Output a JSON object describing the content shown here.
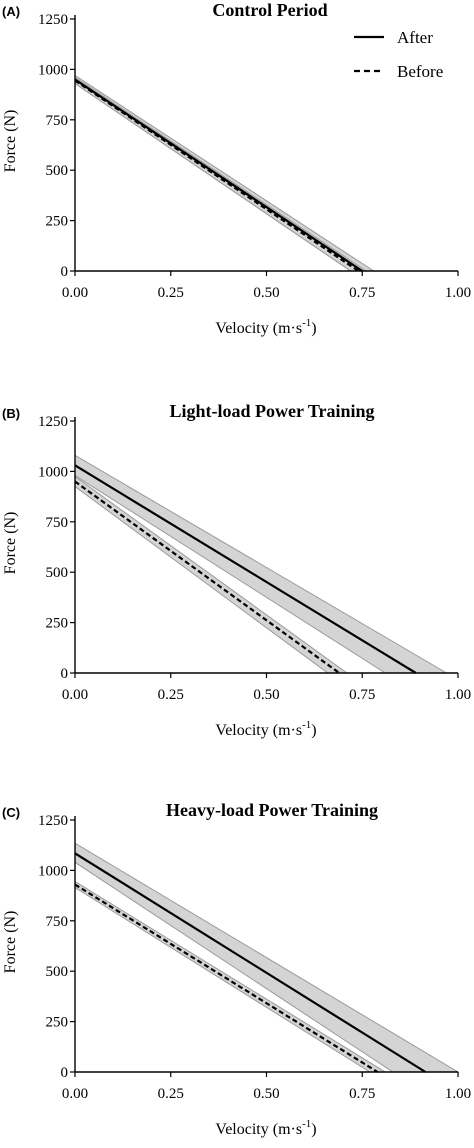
{
  "chart_data": [
    {
      "type": "line",
      "panel": "(A)",
      "title": "Control Period",
      "xlabel": "Velocity (m·s",
      "xlabel_sup": "-1",
      "xlabel_close": ")",
      "ylabel": "Force (N)",
      "xlim": [
        0,
        1
      ],
      "ylim": [
        0,
        1250
      ],
      "xticks": [
        0,
        0.25,
        0.5,
        0.75,
        1
      ],
      "xtick_labels": [
        "0.00",
        "0.25",
        "0.50",
        "0.75",
        "1.00"
      ],
      "yticks": [
        0,
        250,
        500,
        750,
        1000,
        1250
      ],
      "ytick_labels": [
        "0",
        "250",
        "500",
        "750",
        "1000",
        "1250"
      ],
      "legend": {
        "position": "top-right",
        "entries": [
          {
            "label": "After",
            "style": "solid"
          },
          {
            "label": "Before",
            "style": "dashed"
          }
        ]
      },
      "series": [
        {
          "name": "After",
          "style": "solid",
          "x": [
            0,
            0.75
          ],
          "y": [
            950,
            0
          ],
          "band": {
            "upper": {
              "x": [
                0,
                0.78
              ],
              "y": [
                970,
                0
              ]
            },
            "lower": {
              "x": [
                0,
                0.72
              ],
              "y": [
                930,
                0
              ]
            }
          }
        },
        {
          "name": "Before",
          "style": "dashed",
          "x": [
            0,
            0.74
          ],
          "y": [
            945,
            0
          ],
          "band": {
            "upper": {
              "x": [
                0,
                0.76
              ],
              "y": [
                960,
                0
              ]
            },
            "lower": {
              "x": [
                0,
                0.72
              ],
              "y": [
                930,
                0
              ]
            }
          }
        }
      ]
    },
    {
      "type": "line",
      "panel": "(B)",
      "title": "Light-load Power Training",
      "xlabel": "Velocity (m·s",
      "xlabel_sup": "-1",
      "xlabel_close": ")",
      "ylabel": "Force (N)",
      "xlim": [
        0,
        1
      ],
      "ylim": [
        0,
        1250
      ],
      "xticks": [
        0,
        0.25,
        0.5,
        0.75,
        1
      ],
      "xtick_labels": [
        "0.00",
        "0.25",
        "0.50",
        "0.75",
        "1.00"
      ],
      "yticks": [
        0,
        250,
        500,
        750,
        1000,
        1250
      ],
      "ytick_labels": [
        "0",
        "250",
        "500",
        "750",
        "1000",
        "1250"
      ],
      "series": [
        {
          "name": "After",
          "style": "solid",
          "x": [
            0,
            0.89
          ],
          "y": [
            1030,
            0
          ],
          "band": {
            "upper": {
              "x": [
                0,
                0.97
              ],
              "y": [
                1080,
                0
              ]
            },
            "lower": {
              "x": [
                0,
                0.81
              ],
              "y": [
                980,
                0
              ]
            }
          }
        },
        {
          "name": "Before",
          "style": "dashed",
          "x": [
            0,
            0.69
          ],
          "y": [
            950,
            0
          ],
          "band": {
            "upper": {
              "x": [
                0,
                0.71
              ],
              "y": [
                975,
                0
              ]
            },
            "lower": {
              "x": [
                0,
                0.66
              ],
              "y": [
                925,
                0
              ]
            }
          }
        }
      ]
    },
    {
      "type": "line",
      "panel": "(C)",
      "title": "Heavy-load Power Training",
      "xlabel": "Velocity (m·s",
      "xlabel_sup": "-1",
      "xlabel_close": ")",
      "ylabel": "Force (N)",
      "xlim": [
        0,
        1
      ],
      "ylim": [
        0,
        1250
      ],
      "xticks": [
        0,
        0.25,
        0.5,
        0.75,
        1
      ],
      "xtick_labels": [
        "0.00",
        "0.25",
        "0.50",
        "0.75",
        "1.00"
      ],
      "yticks": [
        0,
        250,
        500,
        750,
        1000,
        1250
      ],
      "ytick_labels": [
        "0",
        "250",
        "500",
        "750",
        "1000",
        "1250"
      ],
      "series": [
        {
          "name": "After",
          "style": "solid",
          "x": [
            0,
            0.915
          ],
          "y": [
            1085,
            0
          ],
          "band": {
            "upper": {
              "x": [
                0,
                1.0
              ],
              "y": [
                1135,
                0
              ]
            },
            "lower": {
              "x": [
                0,
                0.83
              ],
              "y": [
                1040,
                0
              ]
            }
          }
        },
        {
          "name": "Before",
          "style": "dashed",
          "x": [
            0,
            0.79
          ],
          "y": [
            930,
            0
          ],
          "band": {
            "upper": {
              "x": [
                0,
                0.81
              ],
              "y": [
                945,
                0
              ]
            },
            "lower": {
              "x": [
                0,
                0.77
              ],
              "y": [
                915,
                0
              ]
            }
          }
        }
      ]
    }
  ]
}
